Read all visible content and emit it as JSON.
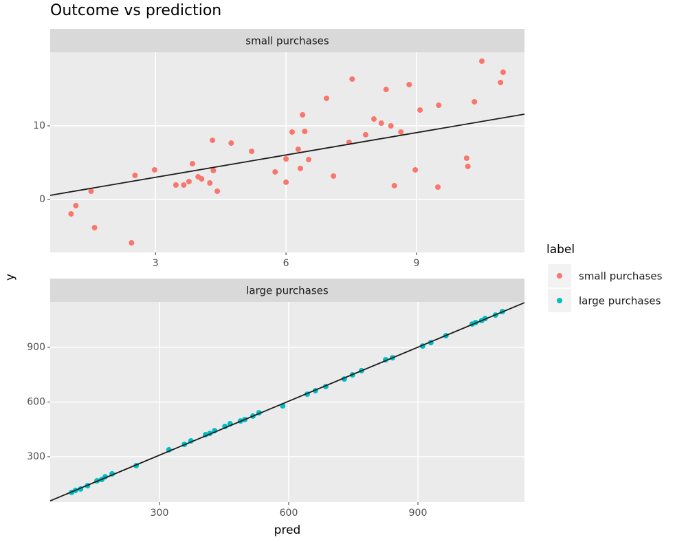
{
  "title": "Outcome vs prediction",
  "x_label": "pred",
  "y_label": "y",
  "legend": {
    "title": "label"
  },
  "chart_data": [
    {
      "type": "scatter",
      "title": "small purchases",
      "grid": true,
      "xlim": [
        0.58,
        11.48
      ],
      "ylim": [
        -7.2,
        20
      ],
      "xticks": [
        3,
        6,
        9
      ],
      "yticks": [
        0,
        10
      ],
      "series": [
        {
          "name": "small purchases",
          "color": "#F8766D",
          "x": [
            1.06,
            1.17,
            1.52,
            1.6,
            2.45,
            2.53,
            2.98,
            3.47,
            3.65,
            3.77,
            3.85,
            3.98,
            4.06,
            4.25,
            4.31,
            4.33,
            4.42,
            4.74,
            5.21,
            5.75,
            6.0,
            6.0,
            6.14,
            6.28,
            6.33,
            6.38,
            6.43,
            6.52,
            6.93,
            7.09,
            7.45,
            7.52,
            7.83,
            8.02,
            8.19,
            8.3,
            8.41,
            8.49,
            8.64,
            8.83,
            8.97,
            9.08,
            9.49,
            9.51,
            10.15,
            10.18,
            10.33,
            10.5,
            10.93,
            10.99
          ],
          "values": [
            -1.96,
            -0.84,
            1.12,
            -3.83,
            -5.89,
            3.27,
            4.02,
            1.96,
            1.96,
            2.43,
            4.86,
            3.08,
            2.8,
            2.24,
            8.04,
            3.93,
            1.12,
            7.66,
            6.54,
            3.74,
            5.51,
            2.34,
            9.16,
            6.82,
            4.21,
            11.5,
            9.25,
            5.42,
            13.74,
            3.18,
            7.76,
            16.36,
            8.79,
            10.93,
            10.37,
            14.95,
            10.0,
            1.87,
            9.16,
            15.61,
            4.02,
            12.15,
            1.68,
            12.8,
            5.61,
            4.49,
            13.27,
            18.79,
            15.89,
            17.29
          ]
        }
      ],
      "fit": {
        "x": [
          0.58,
          11.48
        ],
        "values": [
          0.56,
          11.59
        ]
      }
    },
    {
      "type": "scatter",
      "title": "large purchases",
      "grid": true,
      "xlim": [
        46.3,
        1147.3
      ],
      "ylim": [
        51,
        1149
      ],
      "xticks": [
        300,
        600,
        900
      ],
      "yticks": [
        300,
        600,
        900
      ],
      "series": [
        {
          "name": "large purchases",
          "color": "#00BFC4",
          "x": [
            96,
            105,
            117,
            133,
            155,
            166,
            174,
            190,
            246,
            322,
            358,
            373,
            407,
            417,
            428,
            452,
            464,
            488,
            498,
            517,
            531,
            586,
            643,
            662,
            686,
            729,
            748,
            769,
            825,
            841,
            911,
            930,
            965,
            1026,
            1034,
            1048,
            1056,
            1080,
            1096
          ],
          "values": [
            104,
            115,
            123,
            141,
            168,
            175,
            190,
            206,
            251,
            338,
            368,
            387,
            421,
            428,
            443,
            466,
            481,
            496,
            504,
            523,
            541,
            579,
            643,
            662,
            685,
            726,
            749,
            772,
            832,
            843,
            907,
            926,
            964,
            1028,
            1036,
            1047,
            1058,
            1077,
            1096
          ]
        }
      ],
      "fit": {
        "x": [
          46.3,
          1147.3
        ],
        "values": [
          58,
          1145
        ]
      }
    }
  ]
}
